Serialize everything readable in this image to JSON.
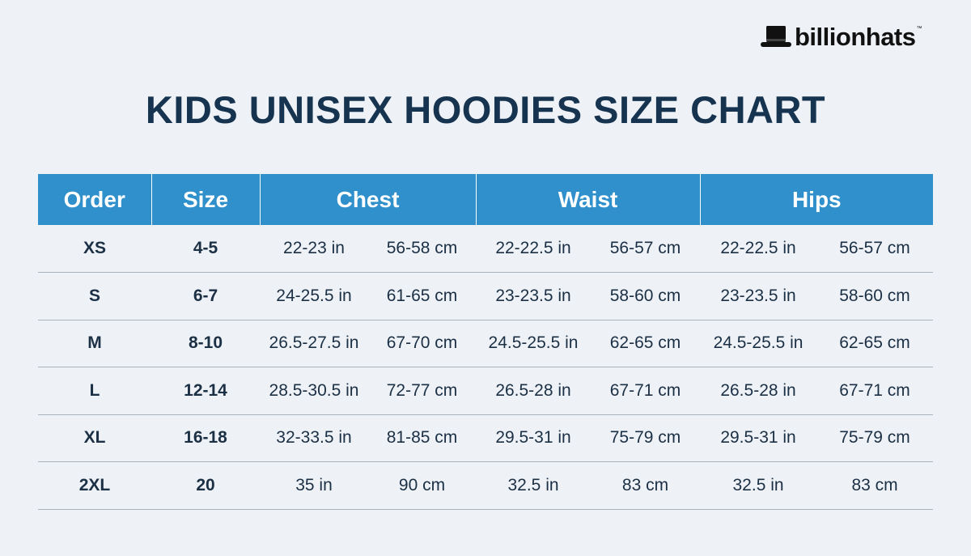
{
  "brand": {
    "name": "billionhats",
    "tm": "™"
  },
  "title": "KIDS UNISEX HOODIES SIZE CHART",
  "table": {
    "headers": [
      "Order",
      "Size",
      "Chest",
      "Waist",
      "Hips"
    ],
    "rows": [
      {
        "order": "XS",
        "size": "4-5",
        "chest_in": "22-23 in",
        "chest_cm": "56-58 cm",
        "waist_in": "22-22.5 in",
        "waist_cm": "56-57 cm",
        "hips_in": "22-22.5 in",
        "hips_cm": "56-57 cm"
      },
      {
        "order": "S",
        "size": "6-7",
        "chest_in": "24-25.5 in",
        "chest_cm": "61-65 cm",
        "waist_in": "23-23.5 in",
        "waist_cm": "58-60 cm",
        "hips_in": "23-23.5 in",
        "hips_cm": "58-60 cm"
      },
      {
        "order": "M",
        "size": "8-10",
        "chest_in": "26.5-27.5 in",
        "chest_cm": "67-70 cm",
        "waist_in": "24.5-25.5 in",
        "waist_cm": "62-65 cm",
        "hips_in": "24.5-25.5 in",
        "hips_cm": "62-65 cm"
      },
      {
        "order": "L",
        "size": "12-14",
        "chest_in": "28.5-30.5 in",
        "chest_cm": "72-77 cm",
        "waist_in": "26.5-28 in",
        "waist_cm": "67-71 cm",
        "hips_in": "26.5-28 in",
        "hips_cm": "67-71 cm"
      },
      {
        "order": "XL",
        "size": "16-18",
        "chest_in": "32-33.5 in",
        "chest_cm": "81-85 cm",
        "waist_in": "29.5-31 in",
        "waist_cm": "75-79 cm",
        "hips_in": "29.5-31 in",
        "hips_cm": "75-79 cm"
      },
      {
        "order": "2XL",
        "size": "20",
        "chest_in": "35 in",
        "chest_cm": "90 cm",
        "waist_in": "32.5 in",
        "waist_cm": "83 cm",
        "hips_in": "32.5 in",
        "hips_cm": "83 cm"
      }
    ]
  },
  "colors": {
    "background": "#eef2f6",
    "header_blue": "#3090cc",
    "title_navy": "#163350",
    "row_divider": "#a9b3bd"
  }
}
